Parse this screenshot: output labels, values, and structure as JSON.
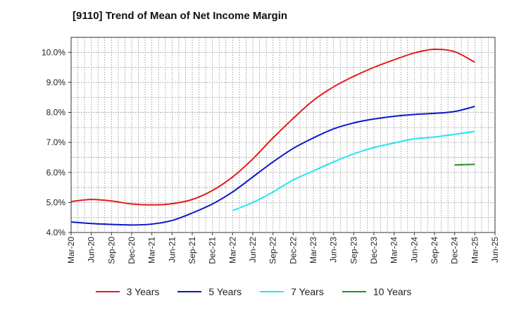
{
  "chart_data": {
    "type": "line",
    "title": "[9110]  Trend of Mean of Net Income Margin",
    "xlabel": "",
    "ylabel": "",
    "ylim": [
      4.0,
      10.5
    ],
    "yticks": [
      "4.0%",
      "5.0%",
      "6.0%",
      "7.0%",
      "8.0%",
      "9.0%",
      "10.0%"
    ],
    "x_tick_labels": [
      "Mar-20",
      "Jun-20",
      "Sep-20",
      "Dec-20",
      "Mar-21",
      "Jun-21",
      "Sep-21",
      "Dec-21",
      "Mar-22",
      "Jun-22",
      "Sep-22",
      "Dec-22",
      "Mar-23",
      "Jun-23",
      "Sep-23",
      "Dec-23",
      "Mar-24",
      "Jun-24",
      "Sep-24",
      "Dec-24",
      "Mar-25",
      "Jun-25"
    ],
    "grid": true,
    "legend_position": "bottom",
    "series": [
      {
        "name": "3 Years",
        "color": "#e41a1c",
        "points": [
          [
            "Mar-20",
            5.03
          ],
          [
            "Jun-20",
            5.1
          ],
          [
            "Sep-20",
            5.05
          ],
          [
            "Dec-20",
            4.95
          ],
          [
            "Mar-21",
            4.92
          ],
          [
            "Jun-21",
            4.96
          ],
          [
            "Sep-21",
            5.1
          ],
          [
            "Dec-21",
            5.4
          ],
          [
            "Mar-22",
            5.85
          ],
          [
            "Jun-22",
            6.45
          ],
          [
            "Sep-22",
            7.15
          ],
          [
            "Dec-22",
            7.8
          ],
          [
            "Mar-23",
            8.4
          ],
          [
            "Jun-23",
            8.85
          ],
          [
            "Sep-23",
            9.2
          ],
          [
            "Dec-23",
            9.5
          ],
          [
            "Mar-24",
            9.75
          ],
          [
            "Jun-24",
            9.98
          ],
          [
            "Sep-24",
            10.1
          ],
          [
            "Dec-24",
            10.02
          ],
          [
            "Mar-25",
            9.67
          ]
        ]
      },
      {
        "name": "5 Years",
        "color": "#0a17c8",
        "points": [
          [
            "Mar-20",
            4.35
          ],
          [
            "Jun-20",
            4.3
          ],
          [
            "Sep-20",
            4.27
          ],
          [
            "Dec-20",
            4.25
          ],
          [
            "Mar-21",
            4.28
          ],
          [
            "Jun-21",
            4.4
          ],
          [
            "Sep-21",
            4.65
          ],
          [
            "Dec-21",
            4.95
          ],
          [
            "Mar-22",
            5.35
          ],
          [
            "Jun-22",
            5.85
          ],
          [
            "Sep-22",
            6.35
          ],
          [
            "Dec-22",
            6.8
          ],
          [
            "Mar-23",
            7.15
          ],
          [
            "Jun-23",
            7.45
          ],
          [
            "Sep-23",
            7.65
          ],
          [
            "Dec-23",
            7.78
          ],
          [
            "Mar-24",
            7.87
          ],
          [
            "Jun-24",
            7.93
          ],
          [
            "Sep-24",
            7.97
          ],
          [
            "Dec-24",
            8.03
          ],
          [
            "Mar-25",
            8.2
          ]
        ]
      },
      {
        "name": "7 Years",
        "color": "#22e5ee",
        "points": [
          [
            "Mar-22",
            4.73
          ],
          [
            "Jun-22",
            5.0
          ],
          [
            "Sep-22",
            5.35
          ],
          [
            "Dec-22",
            5.75
          ],
          [
            "Mar-23",
            6.05
          ],
          [
            "Jun-23",
            6.35
          ],
          [
            "Sep-23",
            6.62
          ],
          [
            "Dec-23",
            6.83
          ],
          [
            "Mar-24",
            6.98
          ],
          [
            "Jun-24",
            7.12
          ],
          [
            "Sep-24",
            7.18
          ],
          [
            "Dec-24",
            7.27
          ],
          [
            "Mar-25",
            7.37
          ]
        ]
      },
      {
        "name": "10 Years",
        "color": "#2a8a2a",
        "points": [
          [
            "Dec-24",
            6.25
          ],
          [
            "Mar-25",
            6.27
          ]
        ]
      }
    ]
  }
}
